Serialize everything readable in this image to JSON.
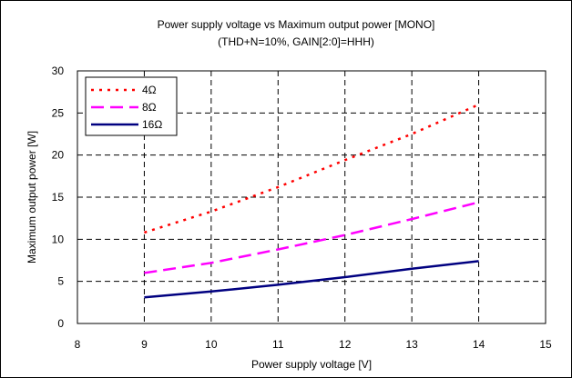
{
  "chart_data": {
    "type": "line",
    "title": "Power supply voltage vs Maximum output power  [MONO]",
    "subtitle": "(THD+N=10%, GAIN[2:0]=HHH)",
    "xlabel": "Power supply voltage [V]",
    "ylabel": "Maximum output power [W]",
    "xlim": [
      8,
      15
    ],
    "ylim": [
      0,
      30
    ],
    "xticks": [
      8,
      9,
      10,
      11,
      12,
      13,
      14,
      15
    ],
    "yticks": [
      0,
      5,
      10,
      15,
      20,
      25,
      30
    ],
    "grid": true,
    "grid_style": "dashed",
    "legend_position": "top-left",
    "series": [
      {
        "name": "4Ω",
        "color": "#ff0000",
        "style": "dotted",
        "x": [
          9,
          10,
          11,
          12,
          13,
          14
        ],
        "y": [
          10.8,
          13.3,
          16.2,
          19.4,
          22.5,
          26.0
        ]
      },
      {
        "name": "8Ω",
        "color": "#ff00ff",
        "style": "dashed",
        "x": [
          9,
          10,
          11,
          12,
          13,
          14
        ],
        "y": [
          6.0,
          7.2,
          8.8,
          10.5,
          12.4,
          14.4
        ]
      },
      {
        "name": "16Ω",
        "color": "#000080",
        "style": "solid",
        "x": [
          9,
          10,
          11,
          12,
          13,
          14
        ],
        "y": [
          3.1,
          3.8,
          4.6,
          5.5,
          6.5,
          7.4
        ]
      }
    ]
  }
}
